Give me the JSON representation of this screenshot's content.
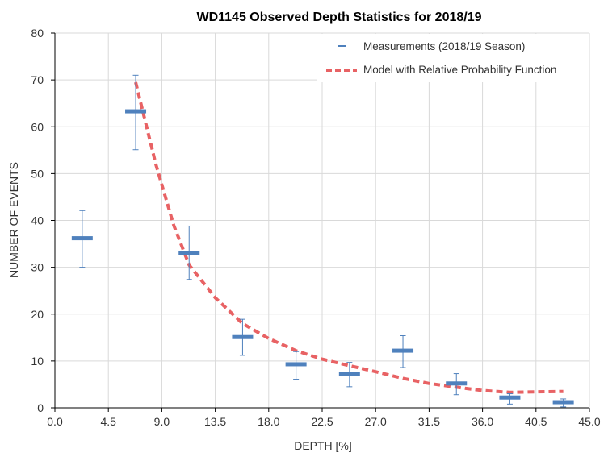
{
  "chart_data": {
    "type": "scatter",
    "title": "WD1145 Observed Depth Statistics for 2018/19",
    "xlabel": "DEPTH [%]",
    "ylabel": "NUMBER OF EVENTS",
    "xlim": [
      0,
      45
    ],
    "ylim": [
      0,
      80
    ],
    "x_ticks": [
      "0.0",
      "4.5",
      "9.0",
      "13.5",
      "18.0",
      "22.5",
      "27.0",
      "31.5",
      "36.0",
      "40.5",
      "45.0"
    ],
    "y_ticks": [
      "0",
      "10",
      "20",
      "30",
      "40",
      "50",
      "60",
      "70",
      "80"
    ],
    "grid": true,
    "legend_position": "top-right",
    "series": [
      {
        "name": "Measurements (2018/19 Season)",
        "style": "marker-with-errorbars",
        "color": "#4f81bd",
        "points": [
          {
            "x": 2.3,
            "y": 36.2,
            "y_low": 30.0,
            "y_high": 42.1
          },
          {
            "x": 6.8,
            "y": 63.3,
            "y_low": 55.1,
            "y_high": 71.0
          },
          {
            "x": 11.3,
            "y": 33.1,
            "y_low": 27.4,
            "y_high": 38.8
          },
          {
            "x": 15.8,
            "y": 15.1,
            "y_low": 11.2,
            "y_high": 18.9
          },
          {
            "x": 20.3,
            "y": 9.3,
            "y_low": 6.1,
            "y_high": 12.0
          },
          {
            "x": 24.8,
            "y": 7.2,
            "y_low": 4.5,
            "y_high": 9.7
          },
          {
            "x": 29.3,
            "y": 12.2,
            "y_low": 8.6,
            "y_high": 15.4
          },
          {
            "x": 33.8,
            "y": 5.2,
            "y_low": 2.8,
            "y_high": 7.3
          },
          {
            "x": 38.3,
            "y": 2.2,
            "y_low": 0.8,
            "y_high": 3.0
          },
          {
            "x": 42.8,
            "y": 1.2,
            "y_low": 0.2,
            "y_high": 1.9
          }
        ]
      },
      {
        "name": "Model with Relative Probability Function",
        "style": "dashed-line",
        "color": "#e86264",
        "x": [
          6.8,
          8.5,
          10.0,
          11.3,
          13.5,
          15.8,
          18.0,
          20.3,
          22.5,
          24.8,
          27.0,
          29.3,
          31.5,
          33.8,
          36.0,
          38.3,
          40.5,
          42.8
        ],
        "y": [
          69.5,
          52.0,
          39.0,
          30.5,
          23.5,
          18.0,
          14.8,
          12.2,
          10.4,
          9.0,
          7.7,
          6.3,
          5.2,
          4.4,
          3.7,
          3.3,
          3.4,
          3.5
        ]
      }
    ]
  }
}
